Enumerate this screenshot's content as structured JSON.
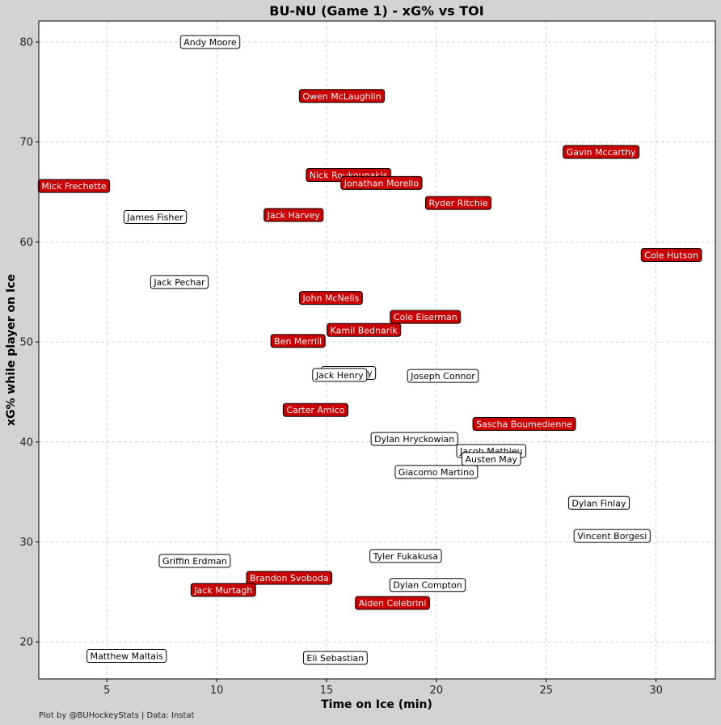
{
  "chart_data": {
    "type": "scatter",
    "title": "BU-NU (Game 1) - xG% vs TOI",
    "xlabel": "Time on Ice (min)",
    "ylabel": "xG% while player on Ice",
    "xlim": [
      1.9,
      32.7
    ],
    "ylim": [
      16.3,
      82.1
    ],
    "xticks": [
      5,
      10,
      15,
      20,
      25,
      30
    ],
    "yticks": [
      20,
      30,
      40,
      50,
      60,
      70,
      80
    ],
    "grid": true,
    "colors": {
      "BU": "#cc0000",
      "NU": "#ffffff",
      "BU_text": "#ffffff",
      "NU_text": "#000000",
      "background": "#d3d3d3",
      "plot_background": "#ffffff"
    },
    "points": [
      {
        "name": "Andy Moore",
        "team": "NU",
        "toi": 9.7,
        "xg": 80.0
      },
      {
        "name": "Owen McLaughlin",
        "team": "BU",
        "toi": 15.7,
        "xg": 74.6
      },
      {
        "name": "Gavin Mccarthy",
        "team": "BU",
        "toi": 27.5,
        "xg": 69.0
      },
      {
        "name": "Mick Frechette",
        "team": "BU",
        "toi": 3.5,
        "xg": 65.6
      },
      {
        "name": "Nick Roukounakis",
        "team": "BU",
        "toi": 16.0,
        "xg": 66.7
      },
      {
        "name": "Jonathan Morello",
        "team": "BU",
        "toi": 17.5,
        "xg": 65.9
      },
      {
        "name": "James Fisher",
        "team": "NU",
        "toi": 7.2,
        "xg": 62.5
      },
      {
        "name": "Jack Harvey",
        "team": "BU",
        "toi": 13.5,
        "xg": 62.7
      },
      {
        "name": "Ryder Ritchie",
        "team": "BU",
        "toi": 21.0,
        "xg": 63.9
      },
      {
        "name": "Cole Hutson",
        "team": "BU",
        "toi": 30.7,
        "xg": 58.7
      },
      {
        "name": "Jack Pechar",
        "team": "NU",
        "toi": 8.3,
        "xg": 56.0
      },
      {
        "name": "John McNelis",
        "team": "BU",
        "toi": 15.2,
        "xg": 54.4
      },
      {
        "name": "Cole Eiserman",
        "team": "BU",
        "toi": 19.5,
        "xg": 52.5
      },
      {
        "name": "Kamil Bednarik",
        "team": "BU",
        "toi": 16.7,
        "xg": 51.2
      },
      {
        "name": "Ben Merrill",
        "team": "BU",
        "toi": 13.7,
        "xg": 50.1
      },
      {
        "name": "Jack Henry",
        "team": "NU",
        "toi": 16.0,
        "xg": 46.9
      },
      {
        "name": "Jack Henry",
        "team": "NU",
        "toi": 15.6,
        "xg": 46.7
      },
      {
        "name": "Joseph Connor",
        "team": "NU",
        "toi": 20.3,
        "xg": 46.6
      },
      {
        "name": "Carter Amico",
        "team": "BU",
        "toi": 14.5,
        "xg": 43.2
      },
      {
        "name": "Sascha Boumedienne",
        "team": "BU",
        "toi": 24.0,
        "xg": 41.8
      },
      {
        "name": "Dylan Hryckowian",
        "team": "NU",
        "toi": 19.0,
        "xg": 40.3
      },
      {
        "name": "Jacob Mathieu",
        "team": "NU",
        "toi": 22.5,
        "xg": 39.1
      },
      {
        "name": "Austen May",
        "team": "NU",
        "toi": 22.5,
        "xg": 38.3
      },
      {
        "name": "Giacomo Martino",
        "team": "NU",
        "toi": 20.0,
        "xg": 37.0
      },
      {
        "name": "Dylan Finlay",
        "team": "NU",
        "toi": 27.4,
        "xg": 33.9
      },
      {
        "name": "Vincent Borgesi",
        "team": "NU",
        "toi": 28.0,
        "xg": 30.6
      },
      {
        "name": "Griffin Erdman",
        "team": "NU",
        "toi": 9.0,
        "xg": 28.1
      },
      {
        "name": "Tyler Fukakusa",
        "team": "NU",
        "toi": 18.6,
        "xg": 28.6
      },
      {
        "name": "Brandon Svoboda",
        "team": "BU",
        "toi": 13.3,
        "xg": 26.4
      },
      {
        "name": "Dylan Compton",
        "team": "NU",
        "toi": 19.6,
        "xg": 25.7
      },
      {
        "name": "Jack Murtagh",
        "team": "BU",
        "toi": 10.3,
        "xg": 25.2
      },
      {
        "name": "Aiden Celebrini",
        "team": "BU",
        "toi": 18.0,
        "xg": 23.9
      },
      {
        "name": "Matthew Maltais",
        "team": "NU",
        "toi": 5.9,
        "xg": 18.6
      },
      {
        "name": "Eli Sebastian",
        "team": "NU",
        "toi": 15.4,
        "xg": 18.4
      }
    ]
  },
  "footer": "Plot by @BUHockeyStats | Data: Instat"
}
